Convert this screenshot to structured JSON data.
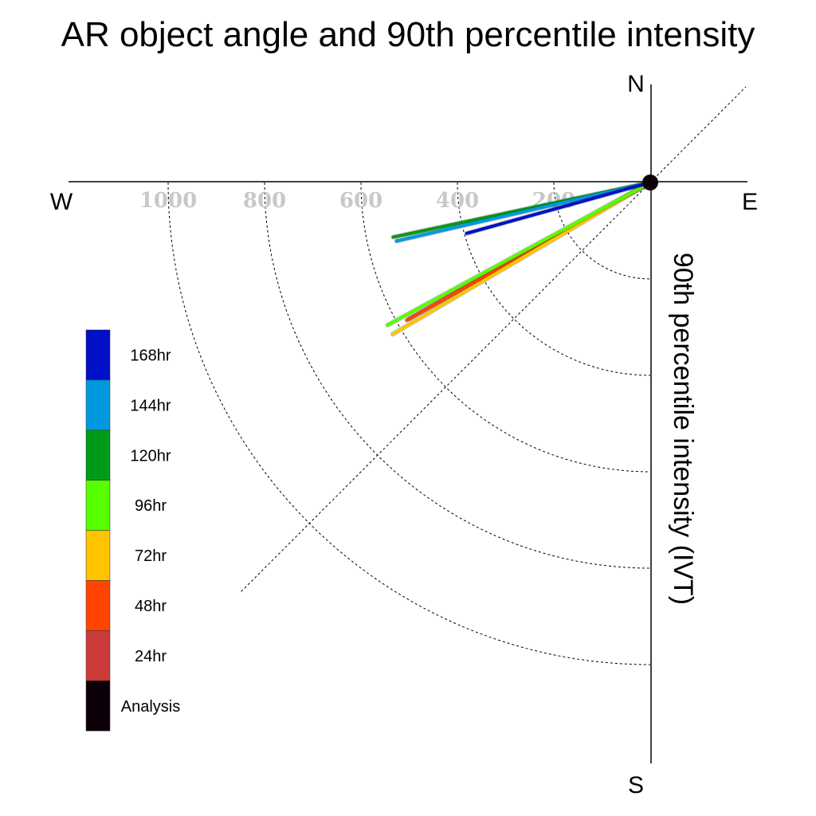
{
  "chart_data": {
    "type": "polar-vector",
    "title": "AR object angle and 90th percentile intensity",
    "axis_label": "90th percentile intensity (IVT)",
    "compass": {
      "north": "N",
      "south": "S",
      "east": "E",
      "west": "W"
    },
    "radial_ticks": [
      "200",
      "400",
      "600",
      "800",
      "1000"
    ],
    "radial_tick_values": [
      200,
      400,
      600,
      800,
      1000
    ],
    "radial_max": 1200,
    "series": [
      {
        "name": "168hr",
        "color": "#0010C8",
        "angle_below_west_deg": 15.5,
        "intensity": 395
      },
      {
        "name": "144hr",
        "color": "#0099DD",
        "angle_below_west_deg": 13.0,
        "intensity": 540
      },
      {
        "name": "120hr",
        "color": "#009A1A",
        "angle_below_west_deg": 12.0,
        "intensity": 545
      },
      {
        "name": "96hr",
        "color": "#55FF00",
        "angle_below_west_deg": 28.5,
        "intensity": 620
      },
      {
        "name": "72hr",
        "color": "#FFC400",
        "angle_below_west_deg": 30.5,
        "intensity": 620
      },
      {
        "name": "48hr",
        "color": "#FF4400",
        "angle_below_west_deg": 29.5,
        "intensity": 580
      },
      {
        "name": "24hr",
        "color": "#CC3A3A",
        "angle_below_west_deg": 29.5,
        "intensity": 575
      },
      {
        "name": "Analysis",
        "color": "#0E0008",
        "angle_below_west_deg": 30.0,
        "intensity": 0
      }
    ]
  }
}
